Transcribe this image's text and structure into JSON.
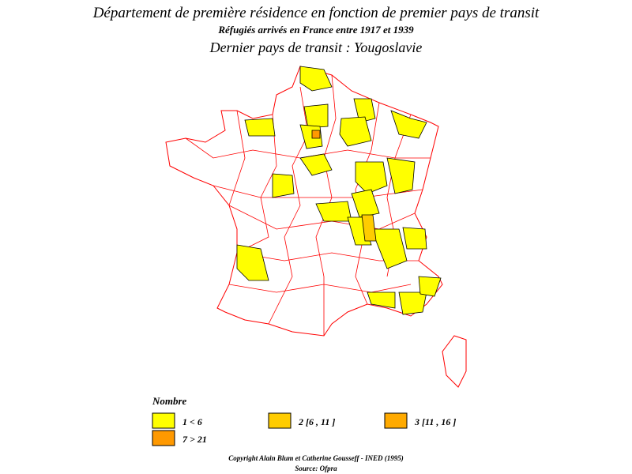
{
  "header": {
    "title": "Département de première résidence en fonction de premier pays de transit",
    "subtitle": "Réfugiés arrivés en France entre 1917 et 1939",
    "map_title": "Dernier pays de transit : Yougoslavie"
  },
  "legend": {
    "title": "Nombre",
    "items": [
      {
        "label": "1 < 6",
        "color": "#ffff00"
      },
      {
        "label": "2 [6 , 11 ]",
        "color": "#ffcc00"
      },
      {
        "label": "3 [11 , 16 ]",
        "color": "#ffaa00"
      },
      {
        "label": "7 > 21",
        "color": "#ff9900"
      }
    ]
  },
  "footer": {
    "copyright": "Copyright Alain Blum et Catherine Gousseff - INED (1995)",
    "source": "Source: Ofpra"
  }
}
